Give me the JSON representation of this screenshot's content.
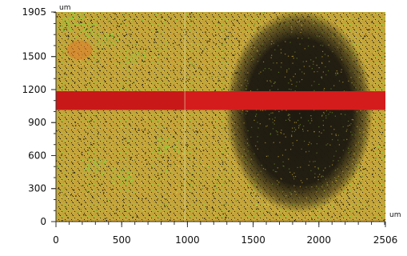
{
  "chart_data": {
    "type": "heatmap",
    "x_unit": "um",
    "y_unit": "um",
    "xlim": [
      0,
      2506
    ],
    "ylim": [
      0,
      1905
    ],
    "x_ticks": [
      0,
      500,
      1000,
      1500,
      2000,
      2506
    ],
    "y_ticks": [
      0,
      300,
      600,
      900,
      1200,
      1500,
      1905
    ],
    "highlight_band": {
      "y_range": [
        1015,
        1185
      ],
      "x_range": [
        0,
        2506
      ]
    },
    "divider_x": 980,
    "dark_region": {
      "center": [
        1850,
        1000
      ],
      "radius_x": 560,
      "radius_y": 920
    },
    "colors": {
      "base": "#c8a838",
      "dark": "#1e1a10",
      "band": "#d41c1c",
      "speckle_green": "#8ccf3a",
      "speckle_orange": "#e07a2a"
    }
  }
}
